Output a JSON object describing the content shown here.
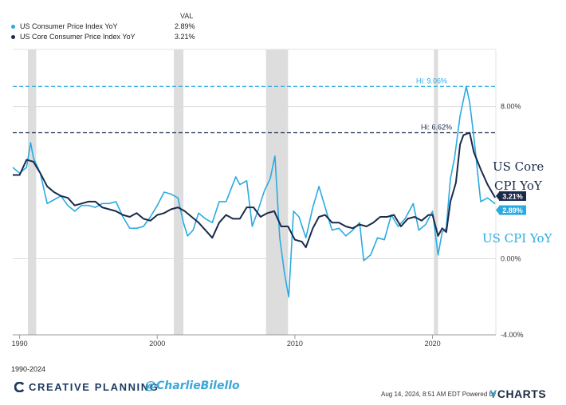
{
  "legend": {
    "header": "VAL",
    "items": [
      {
        "name": "US Consumer Price Index YoY",
        "value": "2.89%",
        "color": "#29ABE2"
      },
      {
        "name": "US Core Consumer Price Index YoY",
        "value": "3.21%",
        "color": "#1B2A4A"
      }
    ]
  },
  "annotations": {
    "hi_cpi": "Hi: 9.06%",
    "hi_core": "Hi: 6.62%",
    "handwritten_core_line1": "US Core",
    "handwritten_core_line2": "CPI YoY",
    "handwritten_cpi": "US CPI YoY"
  },
  "footer": {
    "range": "1990-2024",
    "brand": "CREATIVE PLANNING",
    "handle": "@CharlieBilello",
    "timestamp": "Aug 14, 2024, 8:51 AM EDT Powered by",
    "ycharts_y": "Y",
    "ycharts_rest": "CHARTS"
  },
  "chart_data": {
    "type": "line",
    "xlim": [
      1989.5,
      2024.6
    ],
    "ylim": [
      -4.0,
      11.0
    ],
    "x_ticks": [
      1990,
      2000,
      2010,
      2020
    ],
    "x_tick_labels": [
      "1990",
      "2000",
      "2010",
      "2020"
    ],
    "y_ticks": [
      8,
      0,
      -4
    ],
    "y_tick_labels": [
      "8.00%",
      "0.00%",
      "-4.00%"
    ],
    "recessions": [
      [
        1990.6,
        1991.2
      ],
      [
        2001.2,
        2001.9
      ],
      [
        2007.9,
        2009.5
      ],
      [
        2020.1,
        2020.4
      ]
    ],
    "reference_lines": [
      {
        "label": "Hi: 9.06%",
        "value": 9.06,
        "color": "#29ABE2"
      },
      {
        "label": "Hi: 6.62%",
        "value": 6.62,
        "color": "#1B2A4A"
      }
    ],
    "series": [
      {
        "name": "US Consumer Price Index YoY",
        "color": "#29ABE2",
        "last_label": "2.89%",
        "x": [
          1989.5,
          1990.0,
          1990.5,
          1990.8,
          1991.0,
          1991.5,
          1992.0,
          1992.5,
          1993.0,
          1993.5,
          1994.0,
          1994.5,
          1995.0,
          1995.5,
          1996.0,
          1996.5,
          1997.0,
          1997.5,
          1998.0,
          1998.5,
          1999.0,
          1999.5,
          2000.0,
          2000.5,
          2001.0,
          2001.5,
          2001.9,
          2002.2,
          2002.6,
          2003.0,
          2003.5,
          2004.0,
          2004.5,
          2005.0,
          2005.7,
          2006.0,
          2006.5,
          2006.9,
          2007.3,
          2007.8,
          2008.2,
          2008.55,
          2008.9,
          2009.25,
          2009.55,
          2009.9,
          2010.3,
          2010.8,
          2011.3,
          2011.75,
          2012.2,
          2012.7,
          2013.2,
          2013.7,
          2014.2,
          2014.7,
          2015.0,
          2015.5,
          2016.0,
          2016.5,
          2017.0,
          2017.5,
          2018.0,
          2018.6,
          2019.0,
          2019.5,
          2020.0,
          2020.4,
          2020.7,
          2021.0,
          2021.3,
          2021.6,
          2022.0,
          2022.45,
          2022.7,
          2023.0,
          2023.5,
          2024.0,
          2024.55
        ],
        "y": [
          4.8,
          4.5,
          4.8,
          6.1,
          5.3,
          4.5,
          2.9,
          3.1,
          3.3,
          2.8,
          2.5,
          2.8,
          2.8,
          2.7,
          2.9,
          2.9,
          3.0,
          2.2,
          1.6,
          1.6,
          1.7,
          2.2,
          2.8,
          3.5,
          3.4,
          3.2,
          1.9,
          1.2,
          1.5,
          2.4,
          2.1,
          1.9,
          3.0,
          3.0,
          4.3,
          3.9,
          4.1,
          1.7,
          2.5,
          3.6,
          4.2,
          5.4,
          1.1,
          -0.8,
          -2.0,
          2.5,
          2.2,
          1.1,
          2.7,
          3.8,
          2.7,
          1.5,
          1.6,
          1.2,
          1.5,
          1.9,
          -0.1,
          0.2,
          1.1,
          1.0,
          2.3,
          1.7,
          2.1,
          2.9,
          1.5,
          1.8,
          2.5,
          0.2,
          1.4,
          1.6,
          4.2,
          5.3,
          7.5,
          9.06,
          8.2,
          6.4,
          3.0,
          3.2,
          2.89
        ]
      },
      {
        "name": "US Core Consumer Price Index YoY",
        "color": "#1B2A4A",
        "last_label": "3.21%",
        "x": [
          1989.5,
          1990.0,
          1990.5,
          1991.0,
          1991.5,
          1992.0,
          1992.5,
          1993.0,
          1993.5,
          1994.0,
          1994.5,
          1995.0,
          1995.5,
          1996.0,
          1996.5,
          1997.0,
          1997.5,
          1998.0,
          1998.5,
          1999.0,
          1999.5,
          2000.0,
          2000.5,
          2001.0,
          2001.5,
          2002.0,
          2002.5,
          2003.0,
          2003.5,
          2004.0,
          2004.5,
          2005.0,
          2005.5,
          2006.0,
          2006.5,
          2007.0,
          2007.5,
          2008.0,
          2008.5,
          2009.0,
          2009.5,
          2010.0,
          2010.5,
          2010.8,
          2011.3,
          2011.75,
          2012.2,
          2012.7,
          2013.2,
          2013.7,
          2014.2,
          2014.7,
          2015.2,
          2015.7,
          2016.2,
          2016.7,
          2017.2,
          2017.7,
          2018.2,
          2018.7,
          2019.2,
          2019.7,
          2020.0,
          2020.4,
          2020.7,
          2021.0,
          2021.3,
          2021.7,
          2022.0,
          2022.25,
          2022.7,
          2023.0,
          2023.5,
          2024.0,
          2024.55
        ],
        "y": [
          4.4,
          4.4,
          5.2,
          5.1,
          4.5,
          3.8,
          3.5,
          3.3,
          3.2,
          2.8,
          2.9,
          3.0,
          3.0,
          2.7,
          2.6,
          2.5,
          2.3,
          2.2,
          2.4,
          2.1,
          2.0,
          2.3,
          2.4,
          2.6,
          2.7,
          2.5,
          2.2,
          1.9,
          1.5,
          1.1,
          1.9,
          2.3,
          2.1,
          2.1,
          2.7,
          2.7,
          2.2,
          2.4,
          2.5,
          1.7,
          1.7,
          1.0,
          0.9,
          0.6,
          1.6,
          2.2,
          2.3,
          1.9,
          1.9,
          1.7,
          1.6,
          1.8,
          1.7,
          1.9,
          2.2,
          2.2,
          2.3,
          1.7,
          2.1,
          2.2,
          2.0,
          2.3,
          2.3,
          1.2,
          1.6,
          1.4,
          3.0,
          4.0,
          6.0,
          6.5,
          6.62,
          5.6,
          4.7,
          3.9,
          3.21
        ]
      }
    ]
  }
}
